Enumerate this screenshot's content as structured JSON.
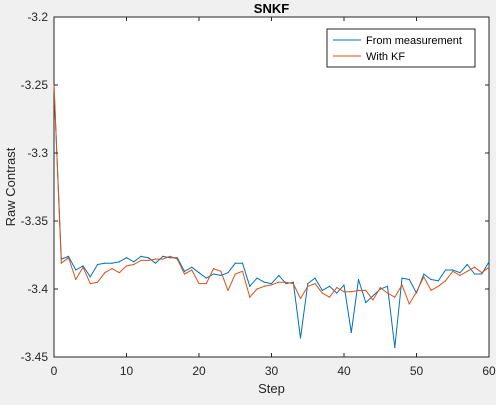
{
  "chart_data": {
    "type": "line",
    "title": "SNKF",
    "xlabel": "Step",
    "ylabel": "Raw Contrast",
    "xlim": [
      0,
      60
    ],
    "ylim": [
      -3.45,
      -3.2
    ],
    "xticks": [
      0,
      10,
      20,
      30,
      40,
      50,
      60
    ],
    "xtick_labels": [
      "0",
      "10",
      "20",
      "30",
      "40",
      "50",
      "60"
    ],
    "yticks": [
      -3.2,
      -3.25,
      -3.3,
      -3.35,
      -3.4,
      -3.45
    ],
    "ytick_labels": [
      "-3.2",
      "-3.25",
      "-3.3",
      "-3.35",
      "-3.4",
      "-3.45"
    ],
    "grid": false,
    "legend_position": "top-right",
    "x": [
      0,
      1,
      2,
      3,
      4,
      5,
      6,
      7,
      8,
      9,
      10,
      11,
      12,
      13,
      14,
      15,
      16,
      17,
      18,
      19,
      20,
      21,
      22,
      23,
      24,
      25,
      26,
      27,
      28,
      29,
      30,
      31,
      32,
      33,
      34,
      35,
      36,
      37,
      38,
      39,
      40,
      41,
      42,
      43,
      44,
      45,
      46,
      47,
      48,
      49,
      50,
      51,
      52,
      53,
      54,
      55,
      56,
      57,
      58,
      59,
      60
    ],
    "series": [
      {
        "name": "From measurement",
        "color": "#0072bd",
        "values": [
          -3.25,
          -3.378,
          -3.376,
          -3.386,
          -3.383,
          -3.391,
          -3.382,
          -3.381,
          -3.381,
          -3.38,
          -3.377,
          -3.38,
          -3.376,
          -3.377,
          -3.381,
          -3.376,
          -3.377,
          -3.377,
          -3.387,
          -3.384,
          -3.388,
          -3.392,
          -3.389,
          -3.39,
          -3.388,
          -3.381,
          -3.381,
          -3.398,
          -3.392,
          -3.395,
          -3.396,
          -3.39,
          -3.396,
          -3.395,
          -3.436,
          -3.396,
          -3.392,
          -3.401,
          -3.398,
          -3.403,
          -3.397,
          -3.432,
          -3.393,
          -3.41,
          -3.405,
          -3.4,
          -3.398,
          -3.443,
          -3.392,
          -3.393,
          -3.403,
          -3.389,
          -3.393,
          -3.394,
          -3.386,
          -3.386,
          -3.388,
          -3.382,
          -3.389,
          -3.389,
          -3.38
        ]
      },
      {
        "name": "With KF",
        "color": "#d95319",
        "values": [
          -3.25,
          -3.381,
          -3.377,
          -3.393,
          -3.384,
          -3.396,
          -3.395,
          -3.388,
          -3.385,
          -3.388,
          -3.383,
          -3.382,
          -3.379,
          -3.379,
          -3.378,
          -3.378,
          -3.376,
          -3.378,
          -3.389,
          -3.386,
          -3.396,
          -3.396,
          -3.385,
          -3.387,
          -3.401,
          -3.389,
          -3.387,
          -3.406,
          -3.4,
          -3.398,
          -3.397,
          -3.395,
          -3.395,
          -3.396,
          -3.407,
          -3.398,
          -3.396,
          -3.403,
          -3.406,
          -3.399,
          -3.402,
          -3.402,
          -3.401,
          -3.401,
          -3.408,
          -3.399,
          -3.403,
          -3.406,
          -3.397,
          -3.411,
          -3.402,
          -3.391,
          -3.401,
          -3.398,
          -3.394,
          -3.387,
          -3.39,
          -3.387,
          -3.384,
          -3.388,
          -3.384
        ]
      }
    ]
  }
}
